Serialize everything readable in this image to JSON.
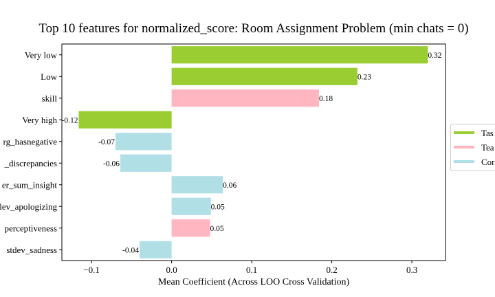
{
  "chart_data": {
    "type": "bar",
    "orientation": "horizontal",
    "title": "Top 10 features for normalized_score: Room Assignment Problem (min chats = 0)",
    "xlabel": "Mean Coefficient (Across LOO Cross Validation)",
    "ylabel": "",
    "xlim": [
      -0.137,
      0.342
    ],
    "xticks": [
      -0.1,
      0.0,
      0.1,
      0.2,
      0.3
    ],
    "xtick_labels": [
      "−0.1",
      "0.0",
      "0.1",
      "0.2",
      "0.3"
    ],
    "grid": false,
    "legend_position": "right (clipped)",
    "categories": [
      "Very low",
      "Low",
      "skill",
      "Very high",
      "rg_hasnegative",
      "_discrepancies",
      "er_sum_insight",
      "lev_apologizing",
      "perceptiveness",
      "stdev_sadness"
    ],
    "values": [
      0.32,
      0.232,
      0.184,
      -0.116,
      -0.07,
      -0.064,
      0.064,
      0.049,
      0.048,
      -0.04
    ],
    "value_labels": [
      "0.32",
      "0.23",
      "0.18",
      "-0.12",
      "-0.07",
      "-0.06",
      "0.06",
      "0.05",
      "0.05",
      "-0.04"
    ],
    "groups": [
      0,
      0,
      1,
      0,
      2,
      2,
      2,
      2,
      1,
      2
    ],
    "legend": [
      {
        "label": "Tas",
        "color": "#9acd32"
      },
      {
        "label": "Tea",
        "color": "#ffb6c1"
      },
      {
        "label": "Cor",
        "color": "#b0e0e6"
      }
    ]
  }
}
